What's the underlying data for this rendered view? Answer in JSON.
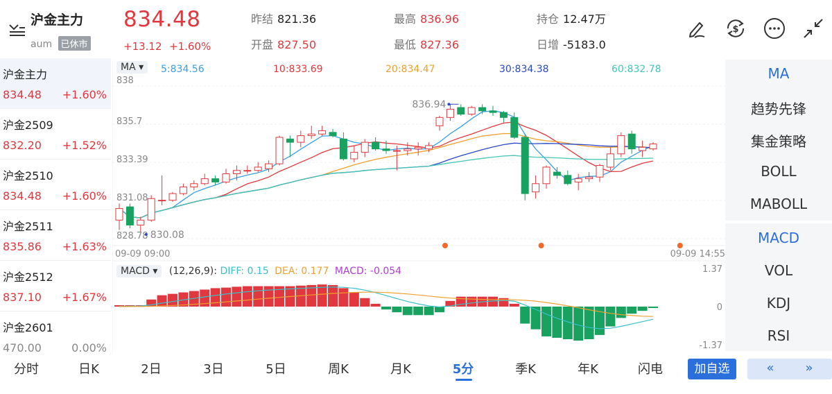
{
  "header": {
    "title": "沪金主力",
    "subtitle": "aum",
    "status_badge": "已休市",
    "price": "834.48",
    "change": "+13.12",
    "change_pct": "+1.60%",
    "stats": {
      "prev_close": {
        "label": "昨结",
        "value": "821.36"
      },
      "open": {
        "label": "开盘",
        "value": "827.50"
      },
      "high": {
        "label": "最高",
        "value": "836.96"
      },
      "low": {
        "label": "最低",
        "value": "827.36"
      },
      "open_interest": {
        "label": "持仓",
        "value": "12.47万"
      },
      "daily_change": {
        "label": "日增",
        "value": "-5183.0"
      }
    },
    "toolbar_icons": [
      "draw-icon",
      "currency-exchange-icon",
      "more-icon",
      "collapse-icon"
    ]
  },
  "sidebar": {
    "items": [
      {
        "name": "沪金主力",
        "price": "834.48",
        "pct": "+1.60%"
      },
      {
        "name": "沪金2509",
        "price": "832.20",
        "pct": "+1.52%"
      },
      {
        "name": "沪金2510",
        "price": "834.48",
        "pct": "+1.60%"
      },
      {
        "name": "沪金2511",
        "price": "835.86",
        "pct": "+1.63%"
      },
      {
        "name": "沪金2512",
        "price": "837.10",
        "pct": "+1.67%"
      },
      {
        "name": "沪金2601",
        "price": "470.00",
        "pct": "0.00%"
      }
    ]
  },
  "chart": {
    "ma_button": "MA ▾",
    "ma_legend": [
      "5:834.56",
      "10:833.69",
      "20:834.47",
      "30:834.38",
      "60:832.78"
    ],
    "ma_colors": [
      "#3b9ee6",
      "#e0383e",
      "#f0a030",
      "#2a49c8",
      "#45c6b5"
    ],
    "y_labels": [
      "838",
      "835.7",
      "833.39",
      "831.08",
      "828.78"
    ],
    "max_label": "836.94",
    "min_label": "830.08",
    "x_start": "09-09 09:00",
    "x_end": "09-09 14:55",
    "macd_button": "MACD ▾",
    "macd_params": "(12,26,9):",
    "diff": "DIFF: 0.15",
    "dea": "DEA: 0.177",
    "macd": "MACD: -0.054",
    "macd_y_labels": [
      "1.37",
      "0",
      "-1.37"
    ]
  },
  "chart_data": {
    "type": "candlestick",
    "x_range": [
      "09-09 09:00",
      "09-09 14:55"
    ],
    "ylim": [
      828.78,
      838
    ],
    "candles": [
      {
        "o": 829.9,
        "h": 830.9,
        "l": 829.3,
        "c": 830.6
      },
      {
        "o": 830.7,
        "h": 830.9,
        "l": 829.4,
        "c": 829.6
      },
      {
        "o": 829.6,
        "h": 830.1,
        "l": 829.2,
        "c": 829.9
      },
      {
        "o": 829.9,
        "h": 831.4,
        "l": 829.8,
        "c": 831.2
      },
      {
        "o": 831.1,
        "h": 832.6,
        "l": 830.8,
        "c": 831.1
      },
      {
        "o": 831.1,
        "h": 831.6,
        "l": 831.0,
        "c": 831.5
      },
      {
        "o": 831.5,
        "h": 832.1,
        "l": 831.4,
        "c": 831.9
      },
      {
        "o": 831.9,
        "h": 832.3,
        "l": 831.7,
        "c": 832.1
      },
      {
        "o": 832.1,
        "h": 832.7,
        "l": 832.0,
        "c": 832.4
      },
      {
        "o": 832.4,
        "h": 832.6,
        "l": 832.0,
        "c": 832.2
      },
      {
        "o": 832.2,
        "h": 833.0,
        "l": 832.1,
        "c": 832.7
      },
      {
        "o": 832.7,
        "h": 833.2,
        "l": 832.3,
        "c": 832.9
      },
      {
        "o": 832.9,
        "h": 833.2,
        "l": 832.7,
        "c": 832.9
      },
      {
        "o": 832.9,
        "h": 833.4,
        "l": 832.8,
        "c": 833.1
      },
      {
        "o": 833.0,
        "h": 833.5,
        "l": 832.8,
        "c": 833.3
      },
      {
        "o": 833.3,
        "h": 835.0,
        "l": 833.2,
        "c": 834.9
      },
      {
        "o": 834.8,
        "h": 835.0,
        "l": 833.7,
        "c": 834.6
      },
      {
        "o": 834.6,
        "h": 835.3,
        "l": 834.3,
        "c": 835.0
      },
      {
        "o": 835.0,
        "h": 835.6,
        "l": 834.8,
        "c": 835.1
      },
      {
        "o": 835.1,
        "h": 835.6,
        "l": 835.0,
        "c": 835.3
      },
      {
        "o": 835.2,
        "h": 835.4,
        "l": 834.9,
        "c": 835.0
      },
      {
        "o": 834.8,
        "h": 835.2,
        "l": 833.5,
        "c": 833.6
      },
      {
        "o": 833.6,
        "h": 834.4,
        "l": 833.4,
        "c": 834.0
      },
      {
        "o": 834.0,
        "h": 834.8,
        "l": 833.7,
        "c": 834.6
      },
      {
        "o": 834.6,
        "h": 834.9,
        "l": 834.1,
        "c": 834.2
      },
      {
        "o": 834.2,
        "h": 834.7,
        "l": 833.9,
        "c": 834.1
      },
      {
        "o": 834.1,
        "h": 834.4,
        "l": 832.9,
        "c": 834.1
      },
      {
        "o": 834.1,
        "h": 834.6,
        "l": 833.8,
        "c": 834.2
      },
      {
        "o": 834.2,
        "h": 834.6,
        "l": 833.8,
        "c": 834.3
      },
      {
        "o": 834.2,
        "h": 834.6,
        "l": 834.0,
        "c": 834.4
      },
      {
        "o": 835.6,
        "h": 836.2,
        "l": 835.3,
        "c": 836.1
      },
      {
        "o": 836.1,
        "h": 836.9,
        "l": 835.9,
        "c": 836.6
      },
      {
        "o": 836.7,
        "h": 836.9,
        "l": 836.2,
        "c": 836.3
      },
      {
        "o": 836.3,
        "h": 836.8,
        "l": 836.2,
        "c": 836.7
      },
      {
        "o": 836.7,
        "h": 836.9,
        "l": 836.3,
        "c": 836.5
      },
      {
        "o": 836.5,
        "h": 836.8,
        "l": 836.2,
        "c": 836.4
      },
      {
        "o": 836.4,
        "h": 836.5,
        "l": 835.8,
        "c": 836.1
      },
      {
        "o": 836.1,
        "h": 836.4,
        "l": 834.8,
        "c": 834.9
      },
      {
        "o": 834.9,
        "h": 835.1,
        "l": 831.1,
        "c": 831.5
      },
      {
        "o": 831.6,
        "h": 832.6,
        "l": 831.2,
        "c": 832.1
      },
      {
        "o": 832.1,
        "h": 833.2,
        "l": 831.8,
        "c": 833.1
      },
      {
        "o": 832.8,
        "h": 833.1,
        "l": 832.4,
        "c": 832.6
      },
      {
        "o": 832.6,
        "h": 832.9,
        "l": 832.0,
        "c": 832.1
      },
      {
        "o": 832.2,
        "h": 832.7,
        "l": 831.7,
        "c": 832.4
      },
      {
        "o": 832.4,
        "h": 832.8,
        "l": 832.2,
        "c": 832.5
      },
      {
        "o": 832.5,
        "h": 833.3,
        "l": 832.2,
        "c": 833.2
      },
      {
        "o": 833.1,
        "h": 834.3,
        "l": 832.9,
        "c": 833.9
      },
      {
        "o": 833.9,
        "h": 835.2,
        "l": 833.7,
        "c": 835.0
      },
      {
        "o": 835.1,
        "h": 835.3,
        "l": 833.9,
        "c": 834.2
      },
      {
        "o": 834.1,
        "h": 834.7,
        "l": 833.7,
        "c": 834.3
      },
      {
        "o": 834.2,
        "h": 834.6,
        "l": 834.1,
        "c": 834.5
      }
    ],
    "macd_hist": [
      0.05,
      0.05,
      0.05,
      0.25,
      0.4,
      0.45,
      0.5,
      0.55,
      0.6,
      0.65,
      0.67,
      0.7,
      0.72,
      0.72,
      0.72,
      0.72,
      0.72,
      0.74,
      0.76,
      0.78,
      0.76,
      0.65,
      0.5,
      0.3,
      0.1,
      -0.1,
      -0.2,
      -0.3,
      -0.3,
      -0.3,
      -0.2,
      0.2,
      0.35,
      0.35,
      0.35,
      0.35,
      0.3,
      0.1,
      -0.6,
      -0.8,
      -1.05,
      -1.1,
      -1.15,
      -1.2,
      -1.15,
      -1.0,
      -0.7,
      -0.4,
      -0.25,
      -0.15,
      -0.05
    ],
    "marker_positions": [
      30,
      39,
      52,
      60,
      72
    ]
  },
  "right_panel": {
    "group1": [
      "MA",
      "趋势先锋",
      "集金策略",
      "BOLL",
      "MABOLL"
    ],
    "group2": [
      "MACD",
      "VOL",
      "KDJ",
      "RSI"
    ]
  },
  "tabs": {
    "items": [
      "分时",
      "日K",
      "2日",
      "3日",
      "5日",
      "周K",
      "月K",
      "5分",
      "季K",
      "年K",
      "闪电"
    ],
    "active": "5分",
    "add_watch": "加自选",
    "prev": "«",
    "next": "»"
  },
  "colors": {
    "up": "#e0383e",
    "down": "#19a15f",
    "accent": "#2a6fdb"
  }
}
